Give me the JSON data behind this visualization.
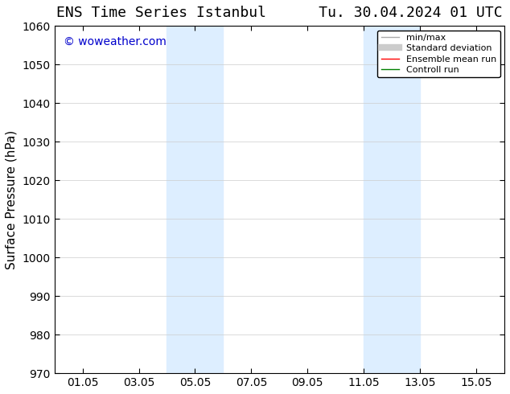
{
  "title": "ENS Time Series Istanbul      Tu. 30.04.2024 01 UTC",
  "ylabel": "Surface Pressure (hPa)",
  "ylim": [
    970,
    1060
  ],
  "yticks": [
    970,
    980,
    990,
    1000,
    1010,
    1020,
    1030,
    1040,
    1050,
    1060
  ],
  "xticklabels": [
    "01.05",
    "03.05",
    "05.05",
    "07.05",
    "09.05",
    "11.05",
    "13.05",
    "15.05"
  ],
  "watermark": "© woweather.com",
  "watermark_color": "#0000cc",
  "background_color": "#ffffff",
  "shaded_regions": [
    {
      "xstart": "2024-05-04",
      "xend": "2024-05-06"
    },
    {
      "xstart": "2024-05-11",
      "xend": "2024-05-13"
    }
  ],
  "shaded_color": "#ddeeff",
  "legend_entries": [
    {
      "label": "min/max",
      "color": "#aaaaaa",
      "lw": 1
    },
    {
      "label": "Standard deviation",
      "color": "#cccccc",
      "lw": 6
    },
    {
      "label": "Ensemble mean run",
      "color": "#ff0000",
      "lw": 1
    },
    {
      "label": "Controll run",
      "color": "#008000",
      "lw": 1
    }
  ],
  "x_start": "2024-04-30",
  "x_end": "2024-05-16",
  "title_fontsize": 13,
  "label_fontsize": 11,
  "tick_fontsize": 10
}
